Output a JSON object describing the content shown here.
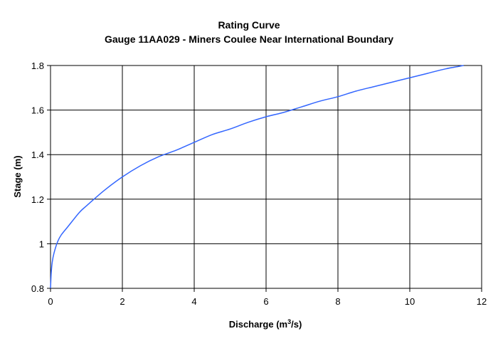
{
  "chart_data": {
    "type": "line",
    "title": "Rating Curve",
    "subtitle": "Gauge 11AA029 - Miners Coulee Near International Boundary",
    "xlabel": "Discharge (m",
    "xlabel_superscript": "3",
    "xlabel_suffix": "/s)",
    "ylabel": "Stage (m)",
    "xlim": [
      0,
      12
    ],
    "ylim": [
      0.8,
      1.8
    ],
    "x_ticks": [
      "0",
      "2",
      "4",
      "6",
      "8",
      "10",
      "12"
    ],
    "y_ticks": [
      "0.8",
      "1",
      "1.2",
      "1.4",
      "1.6",
      "1.8"
    ],
    "grid": true,
    "legend": "none",
    "series": [
      {
        "color": "#3366ff",
        "x": [
          0.0,
          0.02,
          0.05,
          0.1,
          0.2,
          0.3,
          0.5,
          0.8,
          1.0,
          1.5,
          2.0,
          2.5,
          3.0,
          3.5,
          4.0,
          4.5,
          5.0,
          5.5,
          6.0,
          6.5,
          7.0,
          7.5,
          8.0,
          8.5,
          9.0,
          9.5,
          10.0,
          10.5,
          11.0,
          11.5
        ],
        "y": [
          0.8,
          0.87,
          0.92,
          0.96,
          1.01,
          1.04,
          1.08,
          1.14,
          1.17,
          1.24,
          1.3,
          1.35,
          1.39,
          1.42,
          1.455,
          1.49,
          1.515,
          1.545,
          1.57,
          1.59,
          1.615,
          1.64,
          1.66,
          1.685,
          1.705,
          1.725,
          1.745,
          1.765,
          1.785,
          1.8
        ]
      }
    ]
  }
}
